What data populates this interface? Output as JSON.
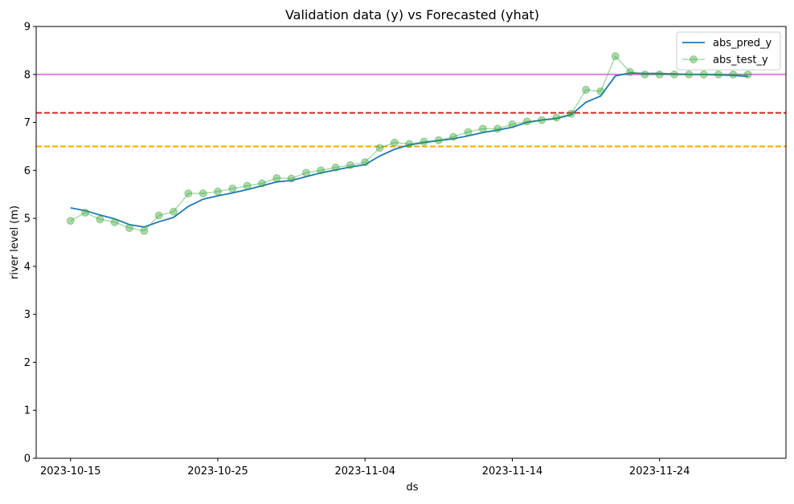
{
  "chart_data": {
    "type": "line",
    "title": "Validation data (y) vs Forecasted (yhat)",
    "xlabel": "ds",
    "ylabel": "river level (m)",
    "xlim": [
      "2023-10-12T16:00",
      "2023-12-02T14:00"
    ],
    "ylim": [
      0,
      9
    ],
    "x_ticks": [
      "2023-10-15",
      "2023-10-25",
      "2023-11-04",
      "2023-11-14",
      "2023-11-24"
    ],
    "y_ticks": [
      0,
      1,
      2,
      3,
      4,
      5,
      6,
      7,
      8,
      9
    ],
    "grid": false,
    "legend_position": "top-right",
    "x": [
      "2023-10-15",
      "2023-10-16",
      "2023-10-17",
      "2023-10-18",
      "2023-10-19",
      "2023-10-20",
      "2023-10-21",
      "2023-10-22",
      "2023-10-23",
      "2023-10-24",
      "2023-10-25",
      "2023-10-26",
      "2023-10-27",
      "2023-10-28",
      "2023-10-29",
      "2023-10-30",
      "2023-10-31",
      "2023-11-01",
      "2023-11-02",
      "2023-11-03",
      "2023-11-04",
      "2023-11-05",
      "2023-11-06",
      "2023-11-07",
      "2023-11-08",
      "2023-11-09",
      "2023-11-10",
      "2023-11-11",
      "2023-11-12",
      "2023-11-13",
      "2023-11-14",
      "2023-11-15",
      "2023-11-16",
      "2023-11-17",
      "2023-11-18",
      "2023-11-19",
      "2023-11-20",
      "2023-11-21",
      "2023-11-22",
      "2023-11-23",
      "2023-11-24",
      "2023-11-25",
      "2023-11-26",
      "2023-11-27",
      "2023-11-28",
      "2023-11-29",
      "2023-11-30"
    ],
    "series": [
      {
        "name": "abs_pred_y",
        "color": "#1f77b4",
        "style": "line",
        "values": [
          5.22,
          5.16,
          5.07,
          4.99,
          4.87,
          4.82,
          4.93,
          5.02,
          5.25,
          5.4,
          5.47,
          5.53,
          5.6,
          5.68,
          5.76,
          5.79,
          5.87,
          5.95,
          6.01,
          6.07,
          6.12,
          6.3,
          6.44,
          6.53,
          6.58,
          6.62,
          6.66,
          6.72,
          6.79,
          6.84,
          6.9,
          7.0,
          7.05,
          7.08,
          7.16,
          7.42,
          7.55,
          7.97,
          8.03,
          8.02,
          8.02,
          8.01,
          8.0,
          8.0,
          7.99,
          7.98,
          7.96
        ]
      },
      {
        "name": "abs_test_y",
        "color": "#2ca02c",
        "style": "line-marker",
        "values": [
          4.95,
          5.12,
          4.98,
          4.92,
          4.8,
          4.74,
          5.06,
          5.14,
          5.52,
          5.52,
          5.56,
          5.62,
          5.68,
          5.73,
          5.84,
          5.83,
          5.95,
          6.0,
          6.06,
          6.11,
          6.17,
          6.47,
          6.58,
          6.55,
          6.6,
          6.63,
          6.7,
          6.8,
          6.87,
          6.87,
          6.96,
          7.02,
          7.05,
          7.1,
          7.18,
          7.68,
          7.65,
          8.38,
          8.05,
          8.0,
          8.0,
          8.0,
          8.0,
          8.0,
          8.0,
          8.0,
          8.0
        ]
      }
    ],
    "reference_lines": [
      {
        "y": 8.0,
        "color": "#e57ee0",
        "style": "solid"
      },
      {
        "y": 7.2,
        "color": "#d62728",
        "style": "dashed"
      },
      {
        "y": 6.5,
        "color": "#ffa500",
        "style": "dashed"
      }
    ]
  }
}
